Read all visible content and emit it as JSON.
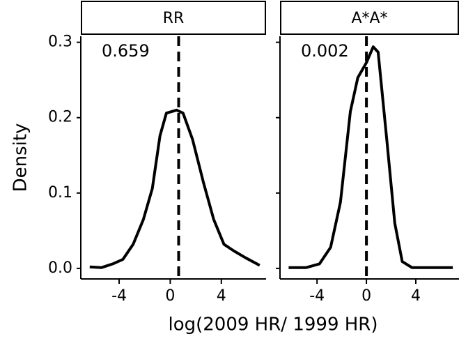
{
  "chart_data": {
    "type": "line",
    "xlabel": "log(2009 HR/ 1999 HR)",
    "ylabel": "Density",
    "xlim": [
      -7,
      7.5
    ],
    "ylim": [
      -0.014,
      0.308
    ],
    "xticks": [
      {
        "value": -4,
        "label": "-4"
      },
      0,
      4
    ],
    "yticks": [
      {
        "value": 0,
        "label": "0.0"
      },
      0.1,
      0.2,
      0.3
    ],
    "color": "#000000",
    "panels": [
      {
        "title": "RR",
        "annotation": "0.659",
        "vline": 0.659,
        "x": [
          -6.3,
          -5.4,
          -4.5,
          -3.7,
          -2.9,
          -2.1,
          -1.4,
          -0.8,
          -0.3,
          0.5,
          1.0,
          1.75,
          2.6,
          3.4,
          4.2,
          5.0,
          5.9,
          7.0
        ],
        "values": [
          0.002,
          0.001,
          0.006,
          0.012,
          0.032,
          0.065,
          0.106,
          0.176,
          0.206,
          0.21,
          0.206,
          0.171,
          0.114,
          0.065,
          0.032,
          0.023,
          0.014,
          0.004
        ]
      },
      {
        "title": "A*A*",
        "annotation": "0.002",
        "vline": 0.002,
        "x": [
          -6.3,
          -4.9,
          -3.8,
          -2.9,
          -2.1,
          -1.3,
          -0.7,
          0,
          0.55,
          0.95,
          1.65,
          2.3,
          2.9,
          3.7,
          7.0
        ],
        "values": [
          0.001,
          0.001,
          0.006,
          0.028,
          0.088,
          0.208,
          0.253,
          0.273,
          0.294,
          0.287,
          0.171,
          0.06,
          0.009,
          0.001,
          0.001
        ]
      }
    ]
  }
}
